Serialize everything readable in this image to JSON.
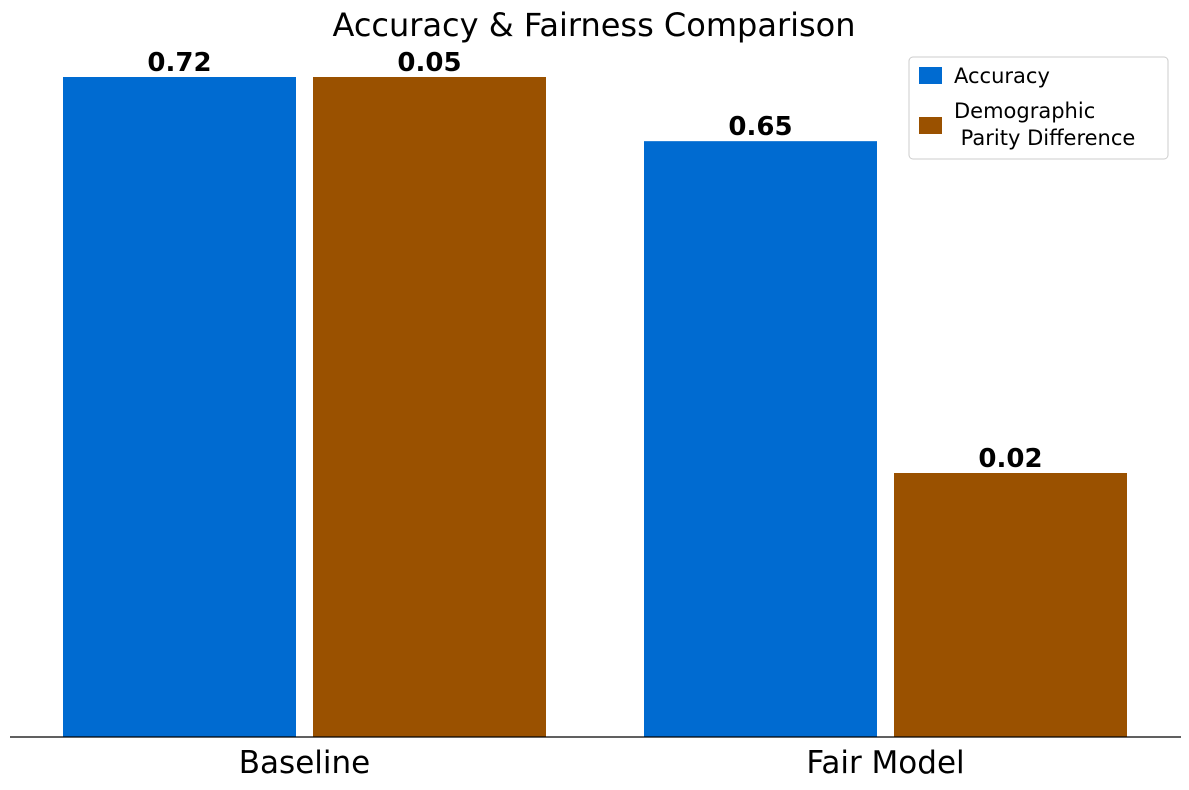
{
  "chart_data": {
    "type": "bar",
    "title": "Accuracy & Fairness Comparison",
    "xlabel": "",
    "ylabel": "",
    "categories": [
      "Baseline",
      "Fair Model"
    ],
    "series": [
      {
        "name": "Accuracy",
        "color": "#006bd1",
        "values": [
          0.72,
          0.65
        ],
        "value_labels": [
          "0.72",
          "0.65"
        ]
      },
      {
        "name": "Demographic\n Parity Difference",
        "color": "#9a5100",
        "values": [
          0.05,
          0.02
        ],
        "value_labels": [
          "0.05",
          "0.02"
        ]
      }
    ],
    "legend_position": "top-right",
    "grid": false,
    "y_axis_visible": false,
    "notes": "Bars appear normalized per metric: baseline bars reach the top; fair-model bars shown relative to baseline."
  }
}
